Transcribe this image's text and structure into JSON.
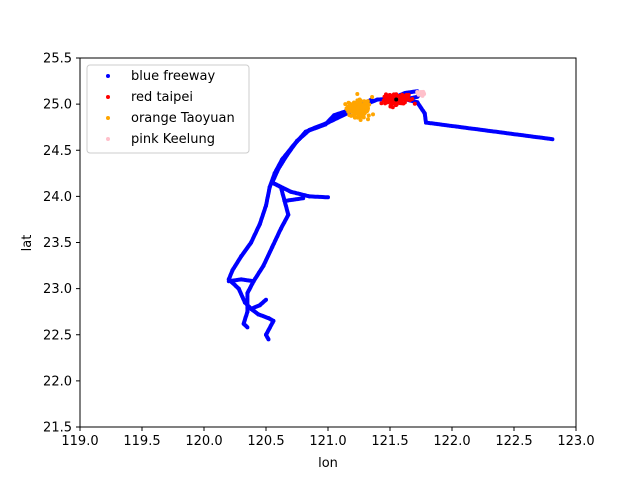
{
  "chart_data": {
    "type": "scatter",
    "xlabel": "lon",
    "ylabel": "lat",
    "xlim": [
      119.0,
      123.0
    ],
    "ylim": [
      21.5,
      25.5
    ],
    "xticks": [
      "119.0",
      "119.5",
      "120.0",
      "120.5",
      "121.0",
      "121.5",
      "122.0",
      "122.5",
      "123.0"
    ],
    "yticks": [
      "21.5",
      "22.0",
      "22.5",
      "23.0",
      "23.5",
      "24.0",
      "24.5",
      "25.0",
      "25.5"
    ],
    "legend_position": "top-left",
    "series": [
      {
        "name": "blue freeway",
        "color": "#0000ff",
        "paths": [
          [
            [
              122.81,
              24.62
            ],
            [
              121.79,
              24.8
            ],
            [
              121.78,
              24.9
            ],
            [
              121.72,
              25.02
            ],
            [
              121.6,
              25.06
            ],
            [
              121.4,
              25.05
            ],
            [
              121.25,
              24.97
            ],
            [
              121.05,
              24.88
            ],
            [
              120.98,
              24.78
            ],
            [
              120.82,
              24.7
            ],
            [
              120.72,
              24.55
            ],
            [
              120.63,
              24.4
            ],
            [
              120.57,
              24.25
            ],
            [
              120.53,
              24.1
            ],
            [
              120.5,
              23.9
            ],
            [
              120.45,
              23.7
            ],
            [
              120.38,
              23.5
            ],
            [
              120.3,
              23.35
            ],
            [
              120.23,
              23.2
            ],
            [
              120.2,
              23.1
            ],
            [
              120.28,
              23.0
            ],
            [
              120.33,
              22.85
            ],
            [
              120.38,
              22.78
            ],
            [
              120.44,
              22.72
            ],
            [
              120.52,
              22.68
            ],
            [
              120.56,
              22.65
            ],
            [
              120.5,
              22.5
            ],
            [
              120.52,
              22.45
            ]
          ],
          [
            [
              121.35,
              25.05
            ],
            [
              121.2,
              24.93
            ],
            [
              121.0,
              24.8
            ],
            [
              120.85,
              24.72
            ],
            [
              120.75,
              24.6
            ],
            [
              120.67,
              24.45
            ],
            [
              120.6,
              24.3
            ],
            [
              120.55,
              24.15
            ],
            [
              120.62,
              24.1
            ],
            [
              120.65,
              23.95
            ],
            [
              120.68,
              23.8
            ],
            [
              120.62,
              23.65
            ],
            [
              120.55,
              23.45
            ],
            [
              120.48,
              23.25
            ],
            [
              120.4,
              23.08
            ],
            [
              120.35,
              22.95
            ],
            [
              120.35,
              22.75
            ],
            [
              120.32,
              22.62
            ],
            [
              120.35,
              22.58
            ]
          ],
          [
            [
              120.55,
              24.15
            ],
            [
              120.7,
              24.05
            ],
            [
              120.85,
              24.0
            ],
            [
              121.0,
              23.99
            ]
          ],
          [
            [
              120.4,
              23.08
            ],
            [
              120.3,
              23.1
            ],
            [
              120.2,
              23.08
            ]
          ],
          [
            [
              120.38,
              22.78
            ],
            [
              120.45,
              22.82
            ],
            [
              120.5,
              22.88
            ]
          ],
          [
            [
              121.5,
              25.05
            ],
            [
              121.62,
              25.12
            ],
            [
              121.72,
              25.14
            ]
          ],
          [
            [
              120.65,
              23.95
            ],
            [
              120.8,
              23.98
            ]
          ],
          [
            [
              121.62,
              25.05
            ],
            [
              121.72,
              25.08
            ],
            [
              121.75,
              25.12
            ]
          ]
        ]
      },
      {
        "name": "red taipei",
        "color": "#ff0000",
        "center": [
          121.55,
          25.05
        ],
        "spread": [
          0.08,
          0.05
        ],
        "count": 120,
        "seed": 7
      },
      {
        "name": "orange Taoyuan",
        "color": "#ffa500",
        "center": [
          121.25,
          24.95
        ],
        "spread": [
          0.08,
          0.08
        ],
        "count": 140,
        "seed": 13
      },
      {
        "name": "pink Keelung",
        "color": "#ffc0cb",
        "center": [
          121.73,
          25.12
        ],
        "spread": [
          0.05,
          0.02
        ],
        "count": 14,
        "seed": 29
      }
    ]
  }
}
